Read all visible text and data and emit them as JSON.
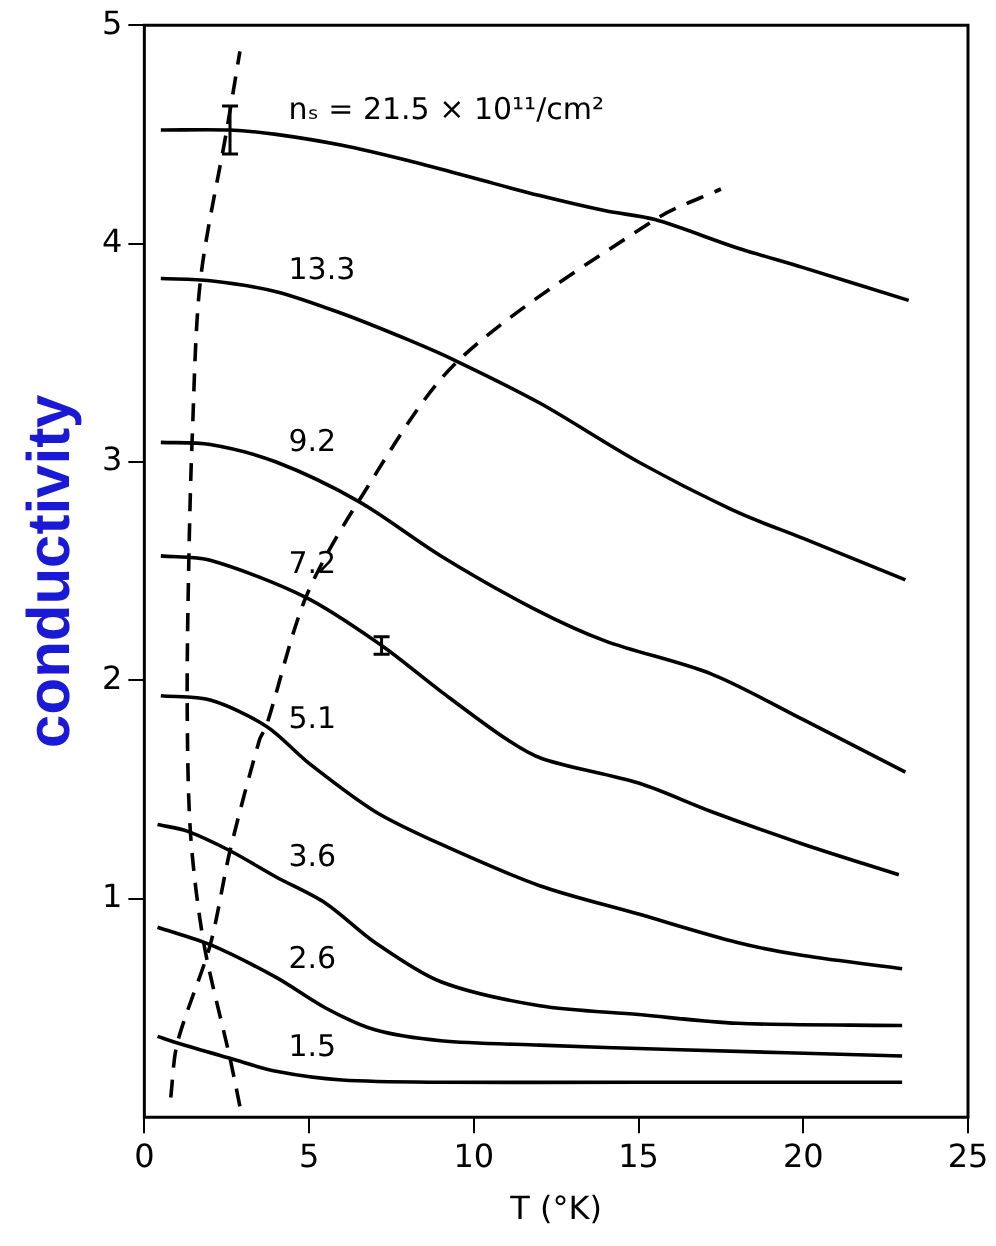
{
  "chart_data": {
    "type": "line",
    "xlabel": "T (°K)",
    "ylabel": "conductivity",
    "xlim": [
      0,
      25
    ],
    "xticks": [
      0,
      5,
      10,
      15,
      20,
      25
    ],
    "ylim": [
      0,
      5
    ],
    "yticks": [
      1,
      2,
      3,
      4,
      5
    ],
    "grid": false,
    "legend": false,
    "marker": "none",
    "line_style": "solid",
    "series": [
      {
        "name": "nₛ = 21.5 × 10¹¹/cm²",
        "color": "#000000",
        "x": [
          0.5,
          2.6,
          4,
          6,
          8,
          10,
          12,
          14,
          15.5,
          18,
          20,
          23.2
        ],
        "values": [
          4.52,
          4.52,
          4.5,
          4.45,
          4.38,
          4.3,
          4.22,
          4.15,
          4.11,
          3.98,
          3.89,
          3.74
        ],
        "errors": [
          null,
          0.11,
          null,
          null,
          null,
          null,
          null,
          null,
          null,
          null,
          null,
          null
        ]
      },
      {
        "name": "13.3",
        "color": "#000000",
        "x": [
          0.5,
          2,
          4,
          6,
          8,
          9.5,
          12,
          15,
          18,
          20,
          23.1
        ],
        "values": [
          3.84,
          3.83,
          3.78,
          3.68,
          3.56,
          3.46,
          3.27,
          3.0,
          2.77,
          2.65,
          2.46
        ]
      },
      {
        "name": "9.2",
        "color": "#000000",
        "x": [
          0.5,
          2,
          4,
          6.5,
          9,
          11.8,
          14,
          17.2,
          20,
          23.1
        ],
        "values": [
          3.09,
          3.08,
          3.0,
          2.82,
          2.57,
          2.33,
          2.18,
          2.03,
          1.82,
          1.58
        ]
      },
      {
        "name": "7.2",
        "color": "#000000",
        "x": [
          0.5,
          2,
          4.9,
          7.2,
          9,
          11,
          12.1,
          15,
          17.2,
          20,
          22.9
        ],
        "values": [
          2.57,
          2.55,
          2.38,
          2.16,
          1.95,
          1.73,
          1.64,
          1.53,
          1.4,
          1.25,
          1.11
        ],
        "errors": [
          null,
          null,
          null,
          0.04,
          null,
          null,
          null,
          null,
          null,
          null,
          null
        ]
      },
      {
        "name": "5.1",
        "color": "#000000",
        "x": [
          0.5,
          2,
          3.7,
          5,
          7,
          9,
          12,
          15,
          18,
          20,
          23
        ],
        "values": [
          1.93,
          1.91,
          1.79,
          1.62,
          1.4,
          1.25,
          1.06,
          0.93,
          0.8,
          0.74,
          0.68
        ]
      },
      {
        "name": "3.6",
        "color": "#000000",
        "x": [
          0.4,
          1.3,
          2.6,
          4,
          5.5,
          7,
          9,
          12,
          15,
          18,
          23
        ],
        "values": [
          1.34,
          1.31,
          1.22,
          1.1,
          0.98,
          0.8,
          0.62,
          0.51,
          0.47,
          0.43,
          0.42
        ]
      },
      {
        "name": "2.6",
        "color": "#000000",
        "x": [
          0.4,
          2,
          4,
          5.5,
          7,
          9,
          12,
          16,
          23
        ],
        "values": [
          0.87,
          0.79,
          0.64,
          0.5,
          0.4,
          0.35,
          0.33,
          0.31,
          0.28
        ]
      },
      {
        "name": "1.5",
        "color": "#000000",
        "x": [
          0.4,
          1,
          2.6,
          4,
          6,
          9,
          15,
          23
        ],
        "values": [
          0.37,
          0.34,
          0.27,
          0.21,
          0.17,
          0.16,
          0.16,
          0.16
        ]
      },
      {
        "color": "#000000",
        "line_style": "dashed",
        "x": [
          2.9,
          2.6,
          1.8,
          1.4,
          1.3,
          1.35,
          1.45,
          1.7,
          2.5,
          2.9
        ],
        "values": [
          0.05,
          0.27,
          0.8,
          1.3,
          1.9,
          2.55,
          3.1,
          3.83,
          4.52,
          4.88
        ]
      },
      {
        "color": "#000000",
        "line_style": "dashed",
        "x": [
          0.8,
          1.0,
          2.0,
          2.6,
          3.5,
          3.7,
          4.9,
          6.5,
          9.5,
          15.5,
          17.5
        ],
        "values": [
          0.09,
          0.34,
          0.79,
          1.22,
          1.73,
          1.79,
          2.38,
          2.82,
          3.46,
          4.11,
          4.25
        ]
      }
    ]
  }
}
